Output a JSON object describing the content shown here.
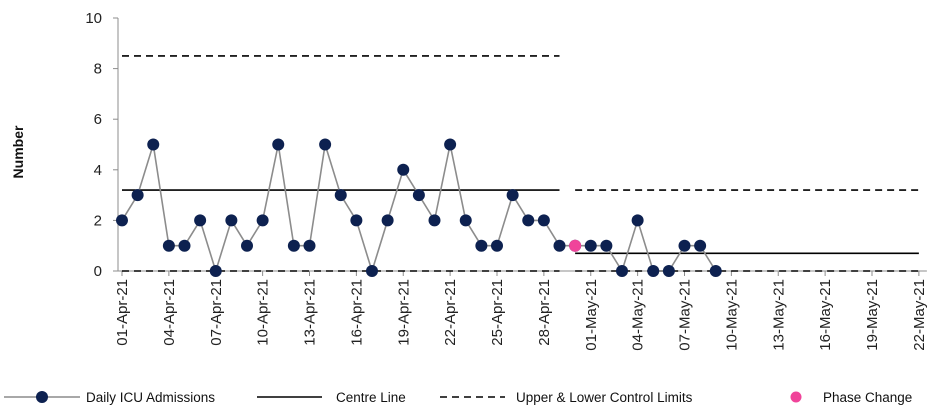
{
  "chart_data": {
    "type": "line",
    "ylabel": "Number",
    "ylim": [
      0,
      10
    ],
    "yticks": [
      0,
      2,
      4,
      6,
      8,
      10
    ],
    "x_tick_labels": [
      "01-Apr-21",
      "04-Apr-21",
      "07-Apr-21",
      "10-Apr-21",
      "13-Apr-21",
      "16-Apr-21",
      "19-Apr-21",
      "22-Apr-21",
      "25-Apr-21",
      "28-Apr-21",
      "01-May-21",
      "04-May-21",
      "07-May-21",
      "10-May-21",
      "13-May-21",
      "16-May-21",
      "19-May-21",
      "22-May-21"
    ],
    "x_start": "01-Apr-21",
    "x_end": "22-May-21",
    "series": [
      {
        "name": "Daily ICU Admissions",
        "color": "#0d2150",
        "x": [
          "01-Apr-21",
          "02-Apr-21",
          "03-Apr-21",
          "04-Apr-21",
          "05-Apr-21",
          "06-Apr-21",
          "07-Apr-21",
          "08-Apr-21",
          "09-Apr-21",
          "10-Apr-21",
          "11-Apr-21",
          "12-Apr-21",
          "13-Apr-21",
          "14-Apr-21",
          "15-Apr-21",
          "16-Apr-21",
          "17-Apr-21",
          "18-Apr-21",
          "19-Apr-21",
          "20-Apr-21",
          "21-Apr-21",
          "22-Apr-21",
          "23-Apr-21",
          "24-Apr-21",
          "25-Apr-21",
          "26-Apr-21",
          "27-Apr-21",
          "28-Apr-21",
          "29-Apr-21",
          "30-Apr-21",
          "01-May-21",
          "02-May-21",
          "03-May-21",
          "04-May-21",
          "05-May-21",
          "06-May-21",
          "07-May-21",
          "08-May-21",
          "09-May-21"
        ],
        "values": [
          2,
          3,
          5,
          1,
          1,
          2,
          0,
          2,
          1,
          2,
          5,
          1,
          1,
          5,
          3,
          2,
          0,
          2,
          4,
          3,
          2,
          5,
          2,
          1,
          1,
          3,
          2,
          2,
          1,
          1,
          1,
          1,
          0,
          2,
          0,
          0,
          1,
          1,
          0
        ]
      },
      {
        "name": "Centre Line",
        "segments": [
          {
            "from": "01-Apr-21",
            "to": "29-Apr-21",
            "value": 3.2
          },
          {
            "from": "30-Apr-21",
            "to": "22-May-21",
            "value": 0.7
          }
        ]
      },
      {
        "name": "Upper & Lower Control Limits",
        "segments": [
          {
            "from": "01-Apr-21",
            "to": "29-Apr-21",
            "upper": 8.5,
            "lower": 0
          },
          {
            "from": "30-Apr-21",
            "to": "22-May-21",
            "upper": 3.2,
            "lower": 0
          }
        ]
      },
      {
        "name": "Phase Change",
        "color": "#f0449a",
        "x": [
          "30-Apr-21"
        ],
        "values": [
          1
        ]
      }
    ],
    "legend_position": "bottom",
    "grid": false
  },
  "legend": {
    "items": [
      {
        "label": "Daily ICU Admissions"
      },
      {
        "label": "Centre Line"
      },
      {
        "label": "Upper & Lower Control Limits"
      },
      {
        "label": "Phase Change"
      }
    ]
  }
}
